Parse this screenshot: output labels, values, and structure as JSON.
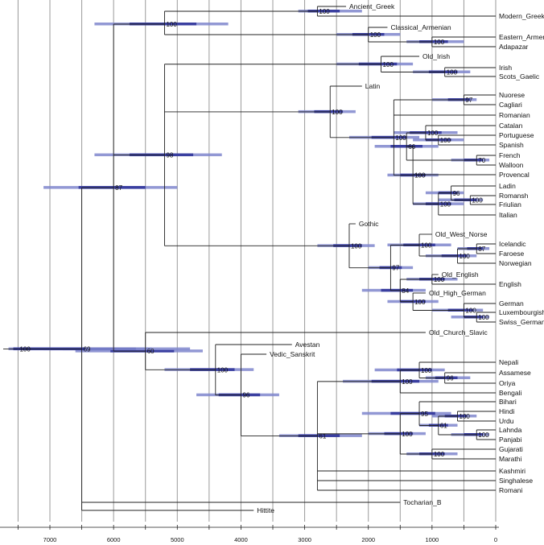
{
  "chart_data": {
    "type": "phylogenetic-tree",
    "title": "",
    "xlabel": "",
    "axis_ticks": [
      7000,
      6000,
      5000,
      4000,
      3000,
      2000,
      1000,
      0
    ],
    "xlim": [
      7750,
      0
    ],
    "grid": true,
    "taxa": [
      "Ancient_Greek",
      "Modern_Greek",
      "Classical_Armenian",
      "Eastern_Armenian",
      "Adapazar",
      "Old_Irish",
      "Irish",
      "Scots_Gaelic",
      "Latin",
      "Nuorese",
      "Cagliari",
      "Romanian",
      "Catalan",
      "Portuguese",
      "Spanish",
      "French",
      "Walloon",
      "Provencal",
      "Ladin",
      "Romansh",
      "Friulian",
      "Italian",
      "Gothic",
      "Old_West_Norse",
      "Icelandic",
      "Faroese",
      "Norwegian",
      "Old_English",
      "English",
      "Old_High_German",
      "German",
      "Luxembourgish",
      "Swiss_German",
      "Old_Church_Slavic",
      "Avestan",
      "Vedic_Sanskrit",
      "Nepali",
      "Assamese",
      "Oriya",
      "Bengali",
      "Bihari",
      "Hindi",
      "Urdu",
      "Lahnda",
      "Panjabi",
      "Gujarati",
      "Marathi",
      "Kashmiri",
      "Singhalese",
      "Romani",
      "Tocharian_B",
      "Hittite"
    ],
    "support_values": [
      "100",
      "100",
      "100",
      "100",
      "100",
      "100",
      "100",
      "100",
      "97",
      "100",
      "100",
      "100",
      "70",
      "66",
      "100",
      "100",
      "100",
      "98",
      "96",
      "100",
      "100",
      "87",
      "100",
      "100",
      "97",
      "100",
      "84",
      "100",
      "100",
      "100",
      "89",
      "100",
      "60",
      "100",
      "96",
      "100",
      "100",
      "95",
      "100",
      "61",
      "100",
      "100",
      "100",
      "61",
      "100",
      "100",
      "69",
      "100"
    ],
    "notes": ""
  }
}
